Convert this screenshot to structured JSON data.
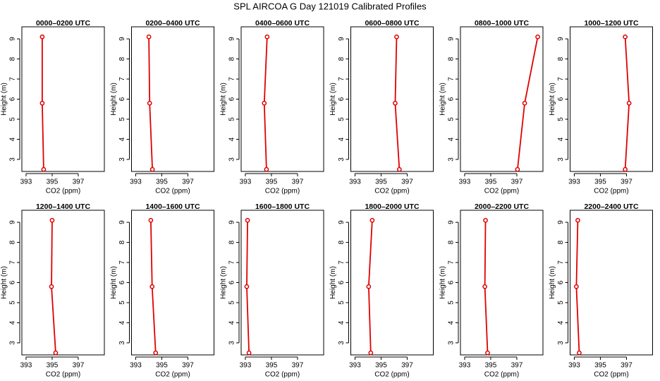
{
  "title": "SPL AIRCOA G  Day 121019  Calibrated Profiles",
  "chart_data": [
    {
      "type": "line",
      "title": "0000–0200 UTC",
      "x_label": "CO2 (ppm)",
      "y_label": "Height (m)",
      "xlim": [
        392.68,
        399.0
      ],
      "ylim": [
        2.4,
        9.6
      ],
      "xticks": [
        393,
        395,
        397
      ],
      "yticks": [
        3,
        4,
        5,
        6,
        7,
        8,
        9
      ],
      "series": [
        {
          "color": "#e00000",
          "x": [
            394.24,
            394.24,
            394.35
          ],
          "values": [
            9.1,
            5.8,
            2.5
          ]
        }
      ]
    },
    {
      "type": "line",
      "title": "0200–0400 UTC",
      "x_label": "CO2 (ppm)",
      "y_label": "Height (m)",
      "xlim": [
        392.68,
        399.0
      ],
      "ylim": [
        2.4,
        9.6
      ],
      "xticks": [
        393,
        395,
        397
      ],
      "yticks": [
        3,
        4,
        5,
        6,
        7,
        8,
        9
      ],
      "series": [
        {
          "color": "#e00000",
          "x": [
            394.01,
            394.07,
            394.28
          ],
          "values": [
            9.1,
            5.8,
            2.5
          ]
        }
      ]
    },
    {
      "type": "line",
      "title": "0400–0600 UTC",
      "x_label": "CO2 (ppm)",
      "y_label": "Height (m)",
      "xlim": [
        392.68,
        399.0
      ],
      "ylim": [
        2.4,
        9.6
      ],
      "xticks": [
        393,
        395,
        397
      ],
      "yticks": [
        3,
        4,
        5,
        6,
        7,
        8,
        9
      ],
      "series": [
        {
          "color": "#e00000",
          "x": [
            394.67,
            394.45,
            394.62
          ],
          "values": [
            9.1,
            5.8,
            2.5
          ]
        }
      ]
    },
    {
      "type": "line",
      "title": "0600–0800 UTC",
      "x_label": "CO2 (ppm)",
      "y_label": "Height (m)",
      "xlim": [
        392.68,
        399.0
      ],
      "ylim": [
        2.4,
        9.6
      ],
      "xticks": [
        393,
        395,
        397
      ],
      "yticks": [
        3,
        4,
        5,
        6,
        7,
        8,
        9
      ],
      "series": [
        {
          "color": "#e00000",
          "x": [
            396.19,
            396.08,
            396.4
          ],
          "values": [
            9.1,
            5.8,
            2.5
          ]
        }
      ]
    },
    {
      "type": "line",
      "title": "0800–1000 UTC",
      "x_label": "CO2 (ppm)",
      "y_label": "Height (m)",
      "xlim": [
        392.68,
        399.0
      ],
      "ylim": [
        2.4,
        9.6
      ],
      "xticks": [
        393,
        395,
        397
      ],
      "yticks": [
        3,
        4,
        5,
        6,
        7,
        8,
        9
      ],
      "series": [
        {
          "color": "#e00000",
          "x": [
            398.6,
            397.6,
            397.05
          ],
          "values": [
            9.1,
            5.8,
            2.5
          ]
        }
      ]
    },
    {
      "type": "line",
      "title": "1000–1200 UTC",
      "x_label": "CO2 (ppm)",
      "y_label": "Height (m)",
      "xlim": [
        392.68,
        399.0
      ],
      "ylim": [
        2.4,
        9.6
      ],
      "xticks": [
        393,
        395,
        397
      ],
      "yticks": [
        3,
        4,
        5,
        6,
        7,
        8,
        9
      ],
      "series": [
        {
          "color": "#e00000",
          "x": [
            396.9,
            397.2,
            396.9
          ],
          "values": [
            9.1,
            5.8,
            2.5
          ]
        }
      ]
    },
    {
      "type": "line",
      "title": "1200–1400 UTC",
      "x_label": "CO2 (ppm)",
      "y_label": "Height (m)",
      "xlim": [
        392.68,
        399.0
      ],
      "ylim": [
        2.4,
        9.6
      ],
      "xticks": [
        393,
        395,
        397
      ],
      "yticks": [
        3,
        4,
        5,
        6,
        7,
        8,
        9
      ],
      "series": [
        {
          "color": "#e00000",
          "x": [
            395.0,
            394.95,
            395.27
          ],
          "values": [
            9.1,
            5.8,
            2.5
          ]
        }
      ]
    },
    {
      "type": "line",
      "title": "1400–1600 UTC",
      "x_label": "CO2 (ppm)",
      "y_label": "Height (m)",
      "xlim": [
        392.68,
        399.0
      ],
      "ylim": [
        2.4,
        9.6
      ],
      "xticks": [
        393,
        395,
        397
      ],
      "yticks": [
        3,
        4,
        5,
        6,
        7,
        8,
        9
      ],
      "series": [
        {
          "color": "#e00000",
          "x": [
            394.16,
            394.26,
            394.53
          ],
          "values": [
            9.1,
            5.8,
            2.5
          ]
        }
      ]
    },
    {
      "type": "line",
      "title": "1600–1800 UTC",
      "x_label": "CO2 (ppm)",
      "y_label": "Height (m)",
      "xlim": [
        392.68,
        399.0
      ],
      "ylim": [
        2.4,
        9.6
      ],
      "xticks": [
        393,
        395,
        397
      ],
      "yticks": [
        3,
        4,
        5,
        6,
        7,
        8,
        9
      ],
      "series": [
        {
          "color": "#e00000",
          "x": [
            393.17,
            393.11,
            393.28
          ],
          "values": [
            9.1,
            5.8,
            2.5
          ]
        }
      ]
    },
    {
      "type": "line",
      "title": "1800–2000 UTC",
      "x_label": "CO2 (ppm)",
      "y_label": "Height (m)",
      "xlim": [
        392.68,
        399.0
      ],
      "ylim": [
        2.4,
        9.6
      ],
      "xticks": [
        393,
        395,
        397
      ],
      "yticks": [
        3,
        4,
        5,
        6,
        7,
        8,
        9
      ],
      "series": [
        {
          "color": "#e00000",
          "x": [
            394.32,
            394.05,
            394.21
          ],
          "values": [
            9.1,
            5.8,
            2.5
          ]
        }
      ]
    },
    {
      "type": "line",
      "title": "2000–2200 UTC",
      "x_label": "CO2 (ppm)",
      "y_label": "Height (m)",
      "xlim": [
        392.68,
        399.0
      ],
      "ylim": [
        2.4,
        9.6
      ],
      "xticks": [
        393,
        395,
        397
      ],
      "yticks": [
        3,
        4,
        5,
        6,
        7,
        8,
        9
      ],
      "series": [
        {
          "color": "#e00000",
          "x": [
            394.6,
            394.55,
            394.76
          ],
          "values": [
            9.1,
            5.8,
            2.5
          ]
        }
      ]
    },
    {
      "type": "line",
      "title": "2200–2400 UTC",
      "x_label": "CO2 (ppm)",
      "y_label": "Height (m)",
      "xlim": [
        392.68,
        399.0
      ],
      "ylim": [
        2.4,
        9.6
      ],
      "xticks": [
        393,
        395,
        397
      ],
      "yticks": [
        3,
        4,
        5,
        6,
        7,
        8,
        9
      ],
      "series": [
        {
          "color": "#e00000",
          "x": [
            393.27,
            393.16,
            393.38
          ],
          "values": [
            9.1,
            5.8,
            2.5
          ]
        }
      ]
    }
  ]
}
